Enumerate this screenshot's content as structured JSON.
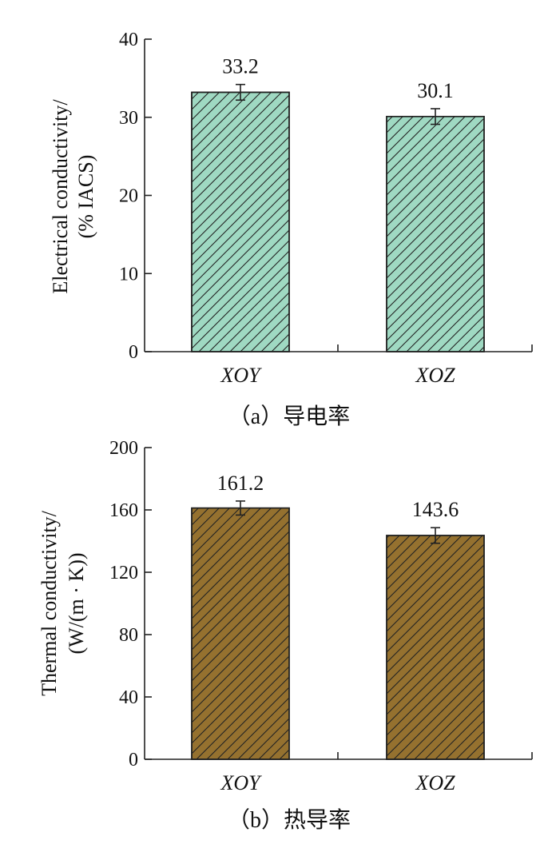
{
  "chart_data": [
    {
      "type": "bar",
      "caption": "（a）导电率",
      "ylabel_lines": [
        "Electrical conductivity/",
        "(% IACS)"
      ],
      "categories": [
        "XOY",
        "XOZ"
      ],
      "values": [
        33.2,
        30.1
      ],
      "value_labels": [
        "33.2",
        "30.1"
      ],
      "errors": [
        1.0,
        1.0
      ],
      "ylim": [
        0,
        40
      ],
      "yticks": [
        0,
        10,
        20,
        30,
        40
      ],
      "bar_color": "#9fd9c2",
      "hatch": "diagonal",
      "grid": false
    },
    {
      "type": "bar",
      "caption": "（b）热导率",
      "ylabel_lines": [
        "Thermal conductivity/",
        "(W/(m · K))"
      ],
      "categories": [
        "XOY",
        "XOZ"
      ],
      "values": [
        161.2,
        143.6
      ],
      "value_labels": [
        "161.2",
        "143.6"
      ],
      "errors": [
        4.5,
        5.0
      ],
      "ylim": [
        0,
        200
      ],
      "yticks": [
        0,
        40,
        80,
        120,
        160,
        200
      ],
      "bar_color": "#95712f",
      "hatch": "diagonal",
      "grid": false
    }
  ]
}
